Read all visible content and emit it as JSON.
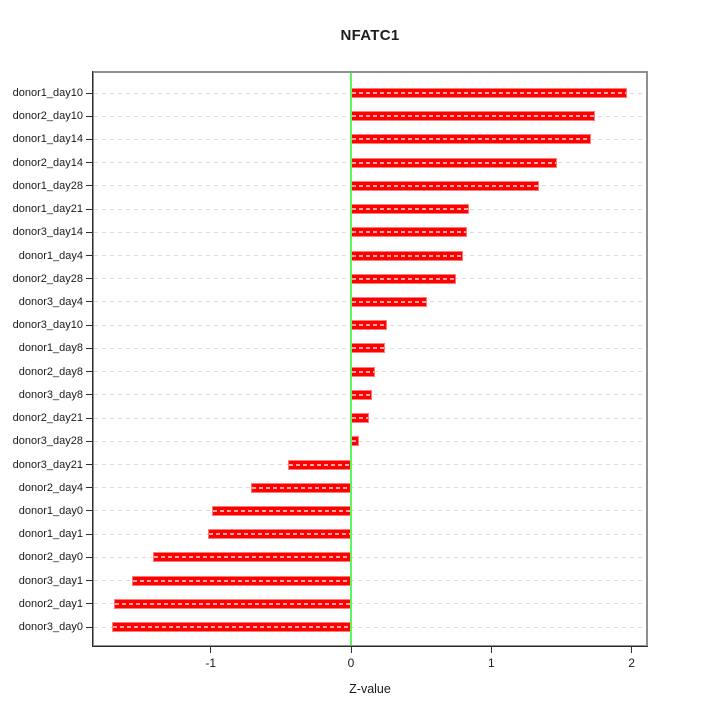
{
  "chart_data": {
    "type": "bar",
    "orientation": "horizontal",
    "title": "NFATC1",
    "xlabel": "Z-value",
    "ylabel": "",
    "categories": [
      "donor1_day10",
      "donor2_day10",
      "donor1_day14",
      "donor2_day14",
      "donor1_day28",
      "donor1_day21",
      "donor3_day14",
      "donor1_day4",
      "donor2_day28",
      "donor3_day4",
      "donor3_day10",
      "donor1_day8",
      "donor2_day8",
      "donor3_day8",
      "donor2_day21",
      "donor3_day28",
      "donor3_day21",
      "donor2_day4",
      "donor1_day0",
      "donor1_day1",
      "donor2_day0",
      "donor3_day1",
      "donor2_day1",
      "donor3_day0"
    ],
    "values": [
      1.97,
      1.74,
      1.71,
      1.47,
      1.34,
      0.84,
      0.83,
      0.8,
      0.75,
      0.54,
      0.26,
      0.24,
      0.17,
      0.15,
      0.13,
      0.06,
      -0.45,
      -0.71,
      -0.99,
      -1.02,
      -1.41,
      -1.56,
      -1.69,
      -1.7
    ],
    "xlim": [
      -1.85,
      2.11
    ],
    "xticks": [
      -1,
      0,
      1,
      2
    ],
    "xtick_labels": [
      "-1",
      "0",
      "1",
      "2"
    ],
    "grid": "horizontal-dashed",
    "legend": "none",
    "zero_reference_line": 0,
    "colors": {
      "bar": "#fe0000",
      "bar_border": "#ff7a7a",
      "zero_line": "#5df75d",
      "grid": "#dcdcdc",
      "box": "#8f8f8f",
      "axis": "#2e2e2e",
      "text": "#1c1c1c",
      "background": "#ffffff"
    }
  }
}
